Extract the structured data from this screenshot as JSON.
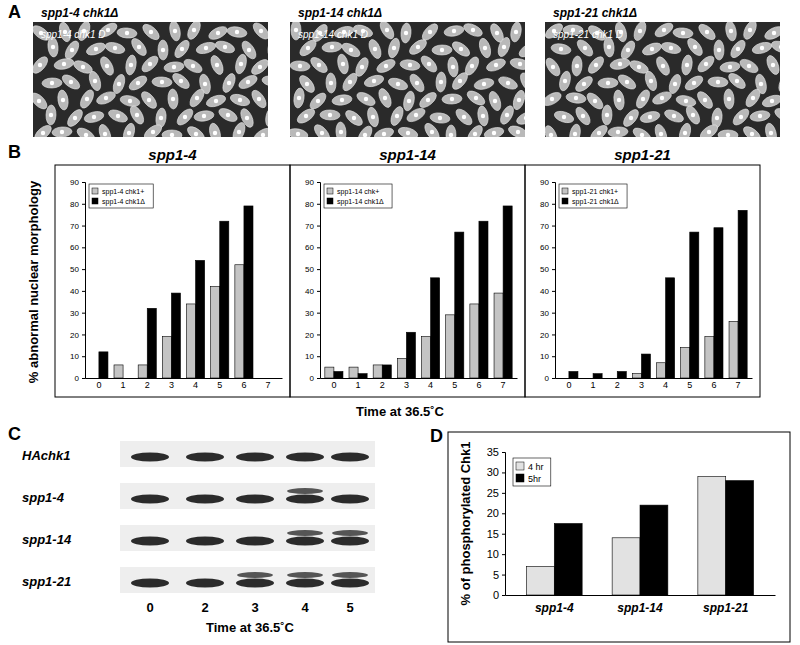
{
  "panel_labels": [
    "A",
    "B",
    "C",
    "D"
  ],
  "micrographs": [
    {
      "title": "spp1-4 chk1Δ",
      "inset": "spp1-4 chk1  D"
    },
    {
      "title": "spp1-14 chk1Δ",
      "inset": "spp1-14 chk1  D"
    },
    {
      "title": "spp1-21 chk1Δ",
      "inset": "spp1-21 chk1  D"
    }
  ],
  "panel_b": {
    "y_label": "% abnormal nuclear morphology",
    "x_label": "Time at 36.5˚C"
  },
  "blot": {
    "rows": [
      {
        "label": "HAchk1",
        "upper_band": [
          false,
          false,
          false,
          false,
          false
        ]
      },
      {
        "label": "spp1-4",
        "upper_band": [
          false,
          false,
          false,
          true,
          false
        ]
      },
      {
        "label": "spp1-14",
        "upper_band": [
          false,
          false,
          false,
          true,
          true
        ]
      },
      {
        "label": "spp1-21",
        "upper_band": [
          false,
          false,
          true,
          true,
          true
        ]
      }
    ],
    "lanes": [
      "0",
      "2",
      "3",
      "4",
      "5"
    ],
    "x_label": "Time at 36.5˚C"
  },
  "chart_data": [
    {
      "type": "bar",
      "title": "spp1-4",
      "categories": [
        "0",
        "1",
        "2",
        "3",
        "4",
        "5",
        "6",
        "7"
      ],
      "series": [
        {
          "name": "spp1-4 chk1+",
          "color": "#c4c4c4",
          "values": [
            0,
            6,
            6,
            19,
            34,
            42,
            52,
            null
          ]
        },
        {
          "name": "spp1-4 chk1Δ",
          "color": "#000000",
          "values": [
            12,
            0,
            32,
            39,
            54,
            72,
            79,
            null
          ]
        }
      ],
      "ylim": [
        0,
        90
      ],
      "yticks": [
        0,
        10,
        20,
        30,
        40,
        50,
        60,
        70,
        80,
        90
      ],
      "legend": "upper left"
    },
    {
      "type": "bar",
      "title": "spp1-14",
      "categories": [
        "0",
        "1",
        "2",
        "3",
        "4",
        "5",
        "6",
        "7"
      ],
      "series": [
        {
          "name": "spp1-14 chk+",
          "color": "#c4c4c4",
          "values": [
            5,
            5,
            6,
            9,
            19,
            29,
            34,
            39
          ]
        },
        {
          "name": "spp1-14 chk1Δ",
          "color": "#000000",
          "values": [
            3,
            2,
            6,
            21,
            46,
            67,
            72,
            79
          ]
        }
      ],
      "ylim": [
        0,
        90
      ],
      "yticks": [
        0,
        10,
        20,
        30,
        40,
        50,
        60,
        70,
        80,
        90
      ],
      "legend": "upper left"
    },
    {
      "type": "bar",
      "title": "spp1-21",
      "categories": [
        "0",
        "1",
        "2",
        "3",
        "4",
        "5",
        "6",
        "7"
      ],
      "series": [
        {
          "name": "spp1-21 chk1+",
          "color": "#c4c4c4",
          "values": [
            0,
            0,
            0,
            2,
            7,
            14,
            19,
            26
          ]
        },
        {
          "name": "spp1-21 chk1Δ",
          "color": "#000000",
          "values": [
            3,
            2,
            3,
            11,
            46,
            67,
            69,
            77
          ]
        }
      ],
      "ylim": [
        0,
        90
      ],
      "yticks": [
        0,
        10,
        20,
        30,
        40,
        50,
        60,
        70,
        80,
        90
      ],
      "legend": "upper left"
    },
    {
      "type": "bar",
      "y_label": "% of phosphorylated Chk1",
      "categories": [
        "spp1-4",
        "spp1-14",
        "spp1-21"
      ],
      "series": [
        {
          "name": "4 hr",
          "color": "#e2e2e2",
          "values": [
            7,
            14,
            29
          ]
        },
        {
          "name": "5hr",
          "color": "#000000",
          "values": [
            17.5,
            22,
            28
          ]
        }
      ],
      "ylim": [
        0,
        35
      ],
      "yticks": [
        0,
        5,
        10,
        15,
        20,
        25,
        30,
        35
      ],
      "legend": "upper left"
    }
  ]
}
